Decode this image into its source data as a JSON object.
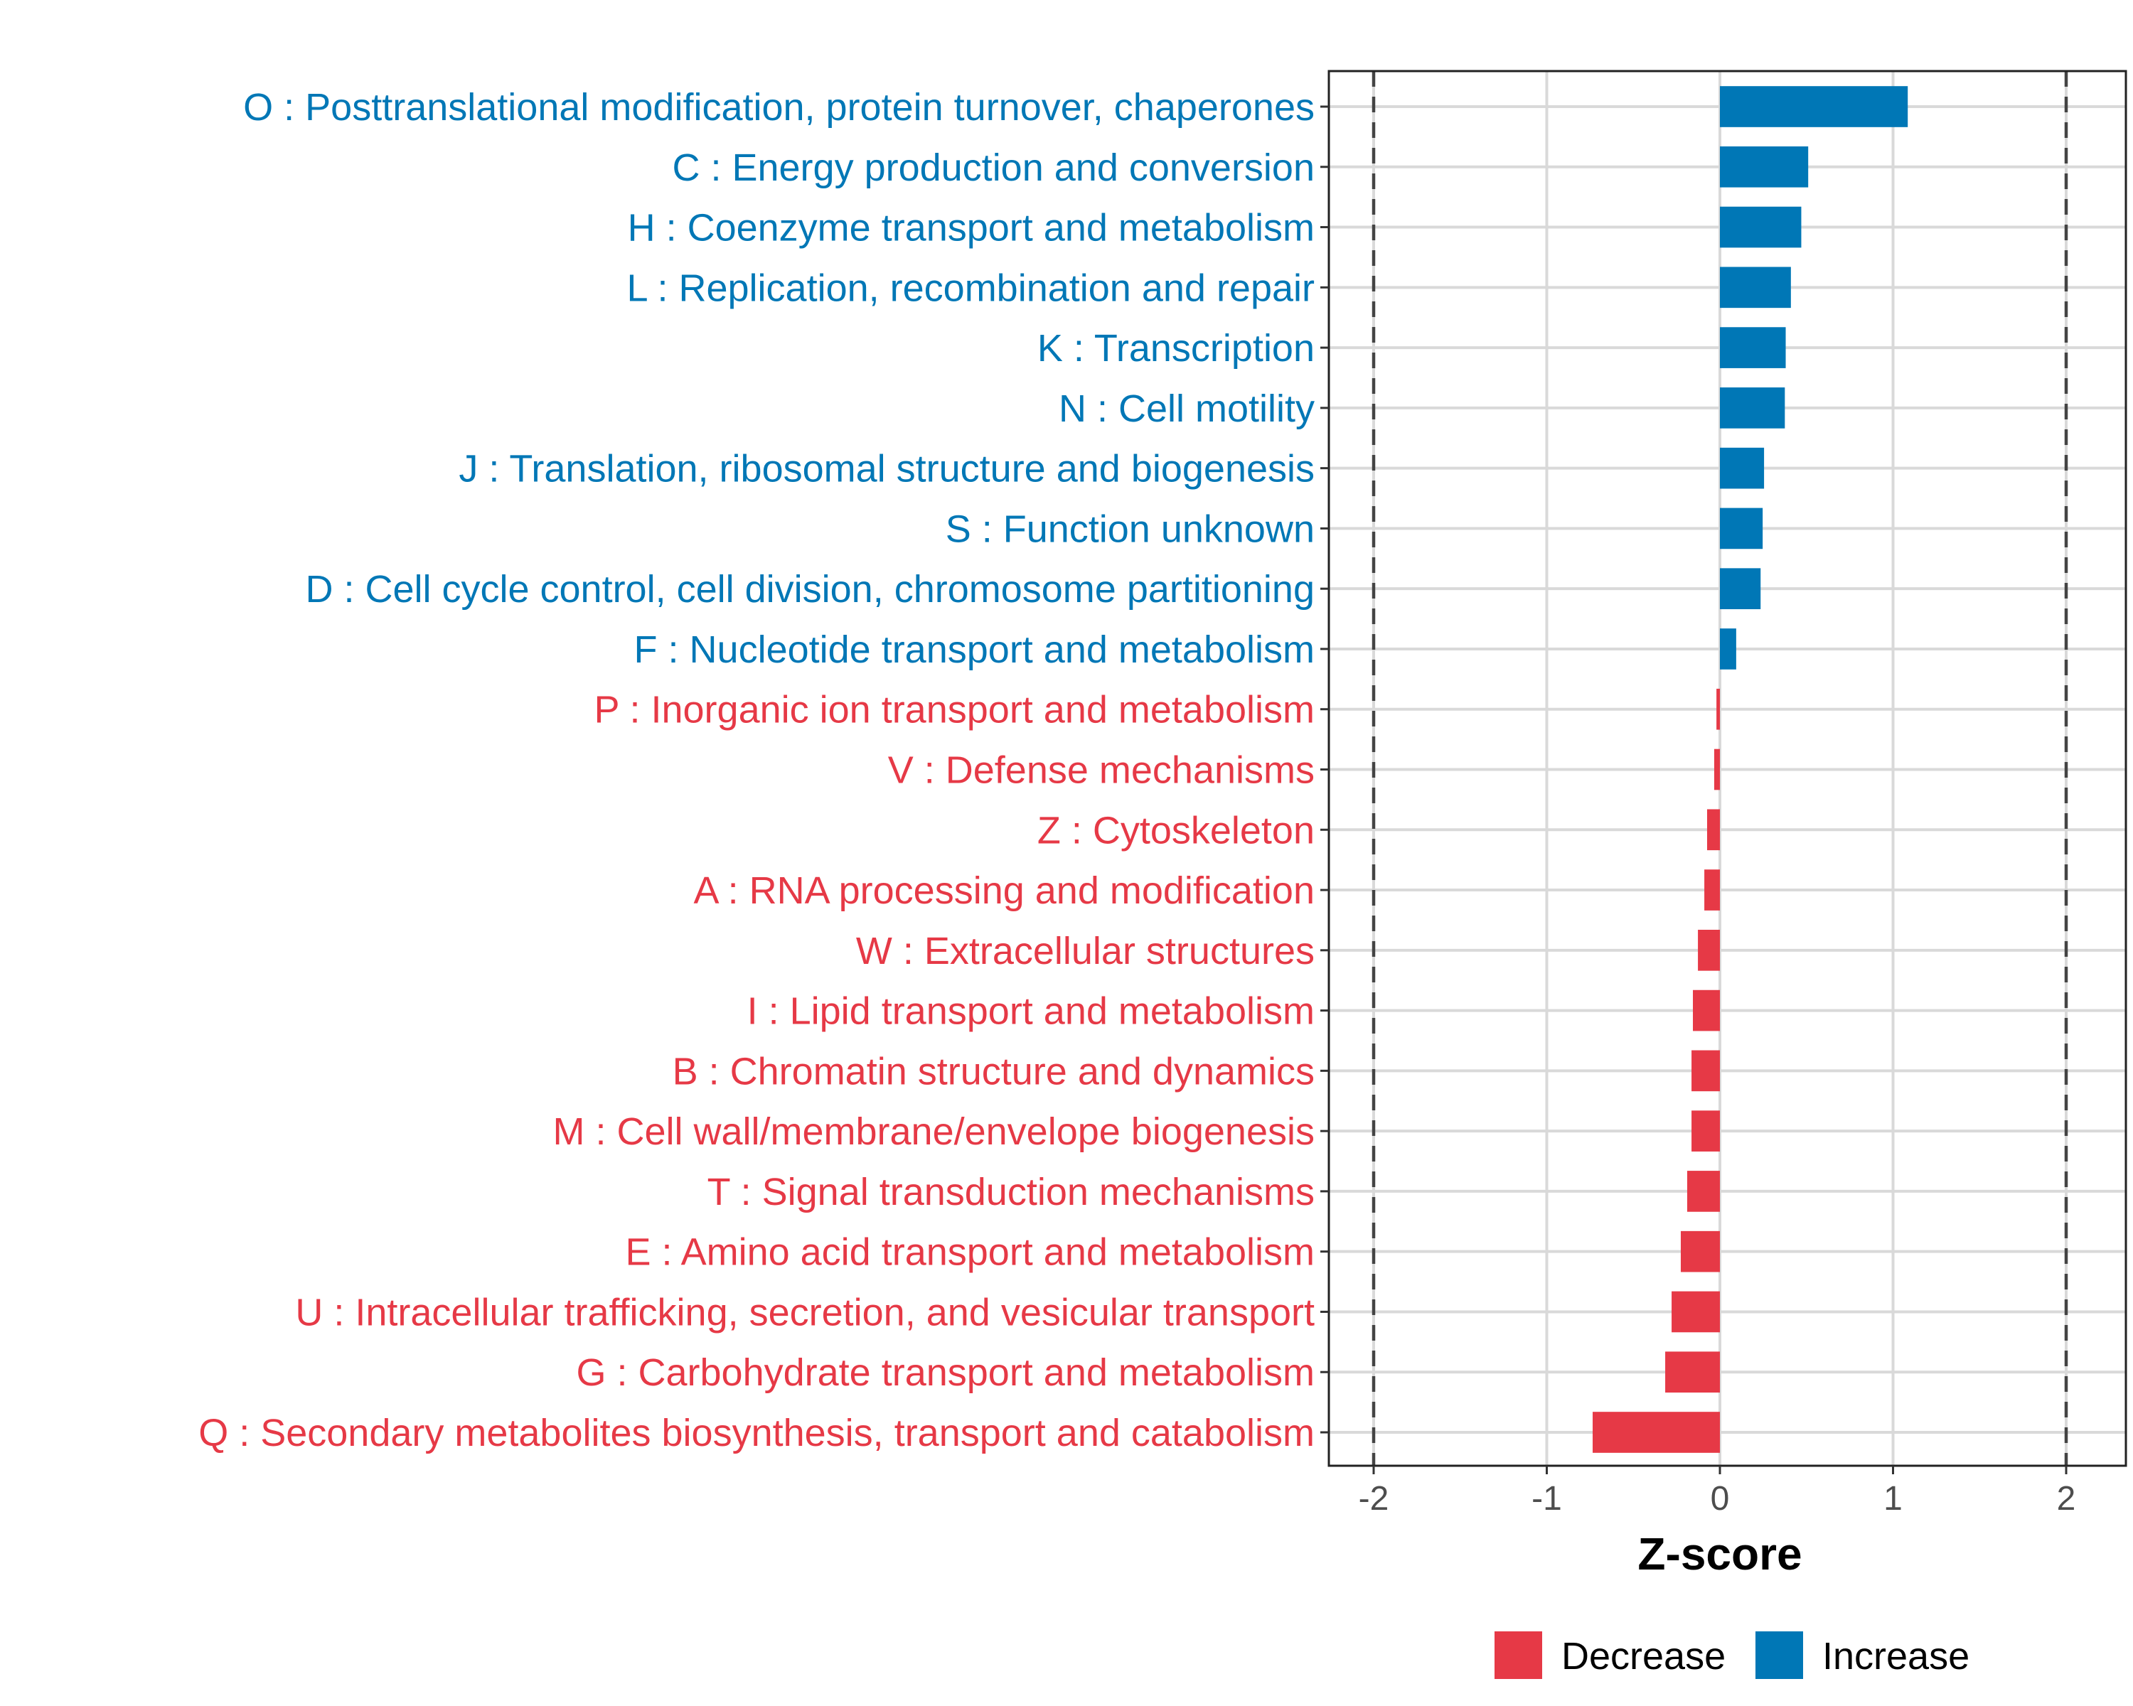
{
  "chart_data": {
    "type": "bar",
    "orientation": "horizontal",
    "title": "",
    "xlabel": "Z-score",
    "ylabel": "",
    "xlim": [
      -2.3,
      2.3
    ],
    "xticks": [
      -2,
      -1,
      0,
      1,
      2
    ],
    "xtick_labels": [
      "-2",
      "-1",
      "0",
      "1",
      "2"
    ],
    "reference_lines": [
      -2,
      2
    ],
    "grid": true,
    "legend_position": "bottom",
    "colors": {
      "Decrease": "#E63946",
      "Increase": "#0077B6"
    },
    "legend": [
      {
        "label": "Decrease",
        "color": "#E63946"
      },
      {
        "label": "Increase",
        "color": "#0077B6"
      }
    ],
    "categories": [
      "O : Posttranslational modification, protein turnover, chaperones",
      "C : Energy production and conversion",
      "H : Coenzyme transport and metabolism",
      "L : Replication, recombination and repair",
      "K : Transcription",
      "N : Cell motility",
      "J : Translation, ribosomal structure and biogenesis",
      "S : Function unknown",
      "D : Cell cycle control, cell division, chromosome partitioning",
      "F : Nucleotide transport and metabolism",
      "P : Inorganic ion transport and metabolism",
      "V : Defense mechanisms",
      "Z : Cytoskeleton",
      "A : RNA processing and modification",
      "W : Extracellular structures",
      "I : Lipid transport and metabolism",
      "B : Chromatin structure and dynamics",
      "M : Cell wall/membrane/envelope biogenesis",
      "T : Signal transduction mechanisms",
      "E : Amino acid transport and metabolism",
      "U : Intracellular trafficking, secretion, and vesicular transport",
      "G : Carbohydrate transport and metabolism",
      "Q : Secondary metabolites biosynthesis, transport and catabolism"
    ],
    "values": [
      1.085,
      0.51,
      0.47,
      0.41,
      0.38,
      0.375,
      0.255,
      0.247,
      0.235,
      0.094,
      -0.02,
      -0.033,
      -0.074,
      -0.09,
      -0.127,
      -0.156,
      -0.164,
      -0.164,
      -0.189,
      -0.226,
      -0.279,
      -0.316,
      -0.735
    ]
  }
}
